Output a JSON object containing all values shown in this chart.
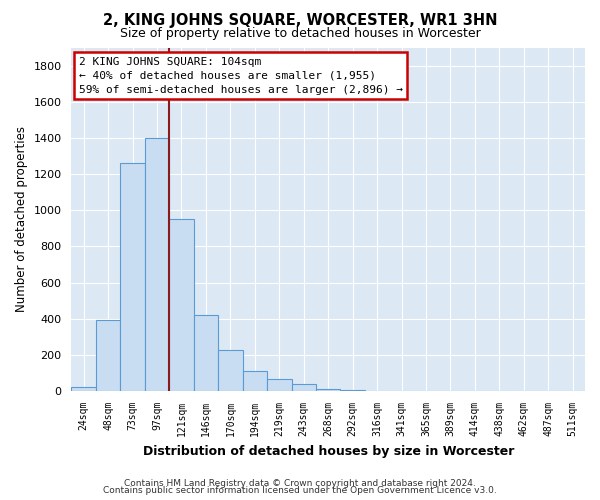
{
  "title": "2, KING JOHNS SQUARE, WORCESTER, WR1 3HN",
  "subtitle": "Size of property relative to detached houses in Worcester",
  "xlabel": "Distribution of detached houses by size in Worcester",
  "ylabel": "Number of detached properties",
  "bar_labels": [
    "24sqm",
    "48sqm",
    "73sqm",
    "97sqm",
    "121sqm",
    "146sqm",
    "170sqm",
    "194sqm",
    "219sqm",
    "243sqm",
    "268sqm",
    "292sqm",
    "316sqm",
    "341sqm",
    "365sqm",
    "389sqm",
    "414sqm",
    "438sqm",
    "462sqm",
    "487sqm",
    "511sqm"
  ],
  "bar_values": [
    25,
    395,
    1260,
    1400,
    950,
    420,
    230,
    110,
    65,
    40,
    10,
    5,
    2,
    1,
    1,
    0,
    0,
    0,
    0,
    0,
    0
  ],
  "bar_color": "#c9ddf2",
  "bar_edge_color": "#5b9bd5",
  "vline_x_index": 4,
  "vline_color": "#8b1a1a",
  "annotation_text": "2 KING JOHNS SQUARE: 104sqm\n← 40% of detached houses are smaller (1,955)\n59% of semi-detached houses are larger (2,896) →",
  "annotation_box_color": "#ffffff",
  "annotation_box_edge": "#cc0000",
  "ylim": [
    0,
    1900
  ],
  "yticks": [
    0,
    200,
    400,
    600,
    800,
    1000,
    1200,
    1400,
    1600,
    1800
  ],
  "footer_line1": "Contains HM Land Registry data © Crown copyright and database right 2024.",
  "footer_line2": "Contains public sector information licensed under the Open Government Licence v3.0.",
  "bg_color": "#ffffff",
  "plot_bg_color": "#dce9f5",
  "grid_color": "#ffffff"
}
